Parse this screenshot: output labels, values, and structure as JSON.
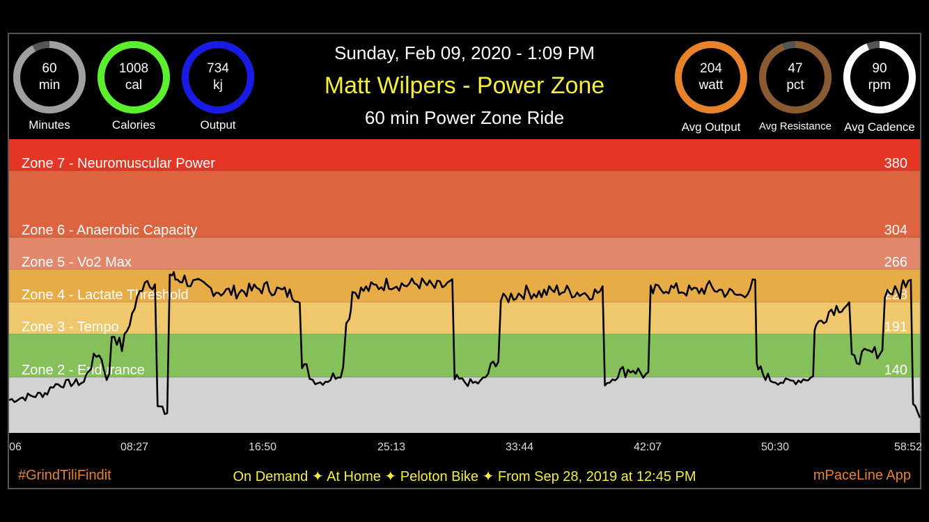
{
  "header": {
    "date": "Sunday, Feb 09, 2020 - 1:09 PM",
    "instructor": "Matt Wilpers - Power Zone",
    "class_name": "60 min Power Zone Ride"
  },
  "metrics_left": [
    {
      "id": "minutes",
      "line1": "60",
      "line2": "min",
      "caption": "Minutes",
      "color": "#a0a0a0",
      "fraction": 0.92
    },
    {
      "id": "calories",
      "line1": "1008",
      "line2": "cal",
      "caption": "Calories",
      "color": "#5cf02c",
      "fraction": 1.0
    },
    {
      "id": "output",
      "line1": "734",
      "line2": "kj",
      "caption": "Output",
      "color": "#1a1ae6",
      "fraction": 1.0
    }
  ],
  "metrics_right": [
    {
      "id": "avg-output",
      "line1": "204",
      "line2": "watt",
      "caption": "Avg Output",
      "color": "#e8832a",
      "fraction": 1.0
    },
    {
      "id": "avg-resistance",
      "line1": "47",
      "line2": "pct",
      "caption": "Avg Resistance",
      "color": "#8a5a30",
      "fraction": 0.94
    },
    {
      "id": "avg-cadence",
      "line1": "90",
      "line2": "rpm",
      "caption": "Avg Cadence",
      "color": "#ffffff",
      "fraction": 0.94
    }
  ],
  "footer": {
    "hashtag": "#GrindTiliFindit",
    "details": "On Demand ✦ At Home  ✦ Peloton Bike ✦ From Sep 28, 2019 at 12:45 PM",
    "app": "mPaceLine App"
  },
  "chart_data": {
    "type": "line",
    "xlabel": "",
    "ylabel": "",
    "x_ticks": [
      "06",
      "08:27",
      "16:50",
      "25:13",
      "33:44",
      "42:07",
      "50:30",
      "58:52"
    ],
    "x_range": [
      0.1,
      59.8
    ],
    "y_range": [
      30,
      400
    ],
    "zones": [
      {
        "name": "Zone 7 - Neuromuscular Power",
        "threshold": 380,
        "color": "#e53524"
      },
      {
        "name": "Zone 6 - Anaerobic Capacity",
        "threshold": 304,
        "color": "#de6440"
      },
      {
        "name": "Zone 5 - Vo2 Max",
        "threshold": 266,
        "color": "#e2886a"
      },
      {
        "name": "Zone 4 - Lactate Threshold",
        "threshold": 228,
        "color": "#e8ac46"
      },
      {
        "name": "Zone 3 - Tempo",
        "threshold": 191,
        "color": "#efc76c"
      },
      {
        "name": "Zone 2 - Endurance",
        "threshold": 140,
        "color": "#86c05a"
      },
      {
        "name": "",
        "threshold": 30,
        "color": "#d2d2d2"
      }
    ],
    "series": [
      {
        "x": [
          0.1,
          1.0,
          2.0,
          2.6,
          3.0,
          4.0,
          5.0,
          5.3,
          6.0,
          6.5,
          7.0,
          7.5,
          8.0,
          8.5,
          9.0,
          9.5,
          10.0,
          10.3,
          10.8,
          11.0,
          11.6,
          12.0,
          13.0,
          14.0,
          15.0,
          16.0,
          17.0,
          18.0,
          19.0,
          19.6,
          20.0,
          20.5,
          21.0,
          22.0,
          22.4,
          22.6,
          23.0,
          24.0,
          25.0,
          26.0,
          27.0,
          28.0,
          29.0,
          29.6,
          30.0,
          30.5,
          31.0,
          32.0,
          32.5,
          33.0,
          34.0,
          35.0,
          36.0,
          37.0,
          38.0,
          39.0,
          39.3,
          40.0,
          41.0,
          42.0,
          42.3,
          43.0,
          44.0,
          45.0,
          46.0,
          47.0,
          48.0,
          49.0,
          49.2,
          50.0,
          51.0,
          52.0,
          52.8,
          53.0,
          54.0,
          55.0,
          55.5,
          56.0,
          57.0,
          58.0,
          58.5,
          58.7,
          59.2,
          59.5,
          59.8
        ],
        "y": [
          95,
          100,
          105,
          110,
          125,
          128,
          130,
          150,
          170,
          140,
          190,
          175,
          205,
          230,
          255,
          250,
          80,
          70,
          260,
          255,
          255,
          250,
          245,
          240,
          240,
          242,
          245,
          240,
          235,
          150,
          135,
          130,
          135,
          150,
          210,
          240,
          240,
          245,
          250,
          248,
          250,
          245,
          248,
          135,
          130,
          128,
          130,
          160,
          230,
          235,
          240,
          238,
          242,
          240,
          238,
          240,
          130,
          145,
          150,
          140,
          240,
          245,
          242,
          240,
          245,
          240,
          235,
          250,
          150,
          135,
          130,
          135,
          140,
          200,
          220,
          225,
          160,
          165,
          170,
          240,
          238,
          250,
          260,
          90,
          60
        ]
      }
    ]
  }
}
